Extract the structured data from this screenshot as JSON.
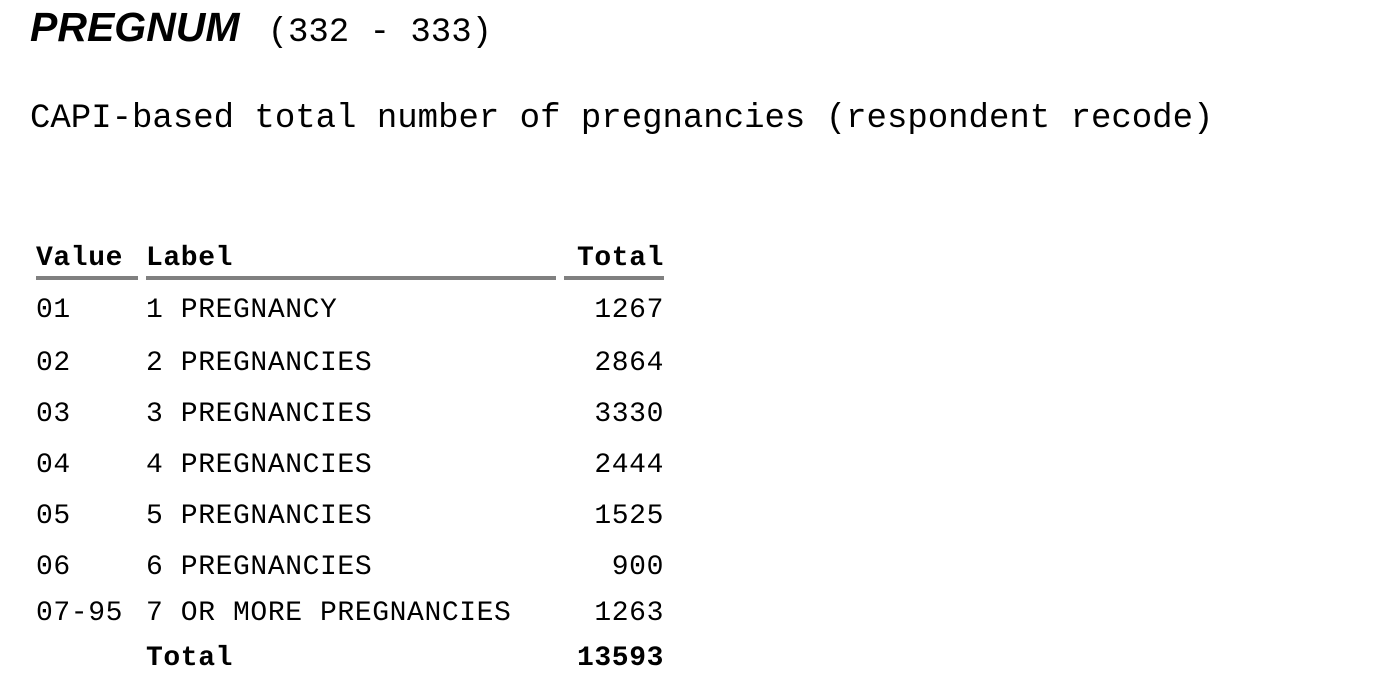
{
  "variable": {
    "name": "PREGNUM",
    "column_range": "(332 - 333)",
    "description": "CAPI-based total number of pregnancies (respondent recode)"
  },
  "table": {
    "headers": {
      "value": "Value",
      "label": "Label",
      "total": "Total"
    },
    "rows": [
      {
        "value": "01",
        "label": "1 PREGNANCY",
        "total": "1267"
      },
      {
        "value": "02",
        "label": "2 PREGNANCIES",
        "total": "2864"
      },
      {
        "value": "03",
        "label": "3 PREGNANCIES",
        "total": "3330"
      },
      {
        "value": "04",
        "label": "4 PREGNANCIES",
        "total": "2444"
      },
      {
        "value": "05",
        "label": "5 PREGNANCIES",
        "total": "1525"
      },
      {
        "value": "06",
        "label": "6 PREGNANCIES",
        "total": "900"
      },
      {
        "value": "07-95",
        "label": "7 OR MORE PREGNANCIES",
        "total": "1263"
      }
    ],
    "total_row": {
      "label": "Total",
      "total": "13593"
    }
  }
}
